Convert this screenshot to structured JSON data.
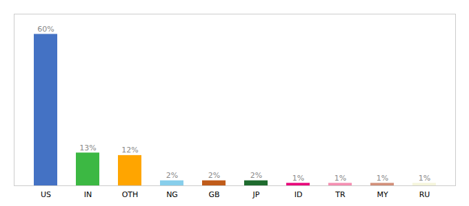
{
  "chart_data": {
    "type": "bar",
    "categories": [
      "US",
      "IN",
      "OTH",
      "NG",
      "GB",
      "JP",
      "ID",
      "TR",
      "MY",
      "RU"
    ],
    "values": [
      60,
      13,
      12,
      2,
      2,
      2,
      1,
      1,
      1,
      1
    ],
    "value_labels": [
      "60%",
      "13%",
      "12%",
      "2%",
      "2%",
      "2%",
      "1%",
      "1%",
      "1%",
      "1%"
    ],
    "colors": [
      "#4472C4",
      "#3CB843",
      "#FFA500",
      "#87CEEB",
      "#C05C1A",
      "#1E6B2E",
      "#E8007A",
      "#F48FB1",
      "#D2907A",
      "#F5F5DC"
    ],
    "ylim": [
      0,
      68
    ],
    "grid": false,
    "data_labels": true,
    "tick_labels": "x"
  }
}
